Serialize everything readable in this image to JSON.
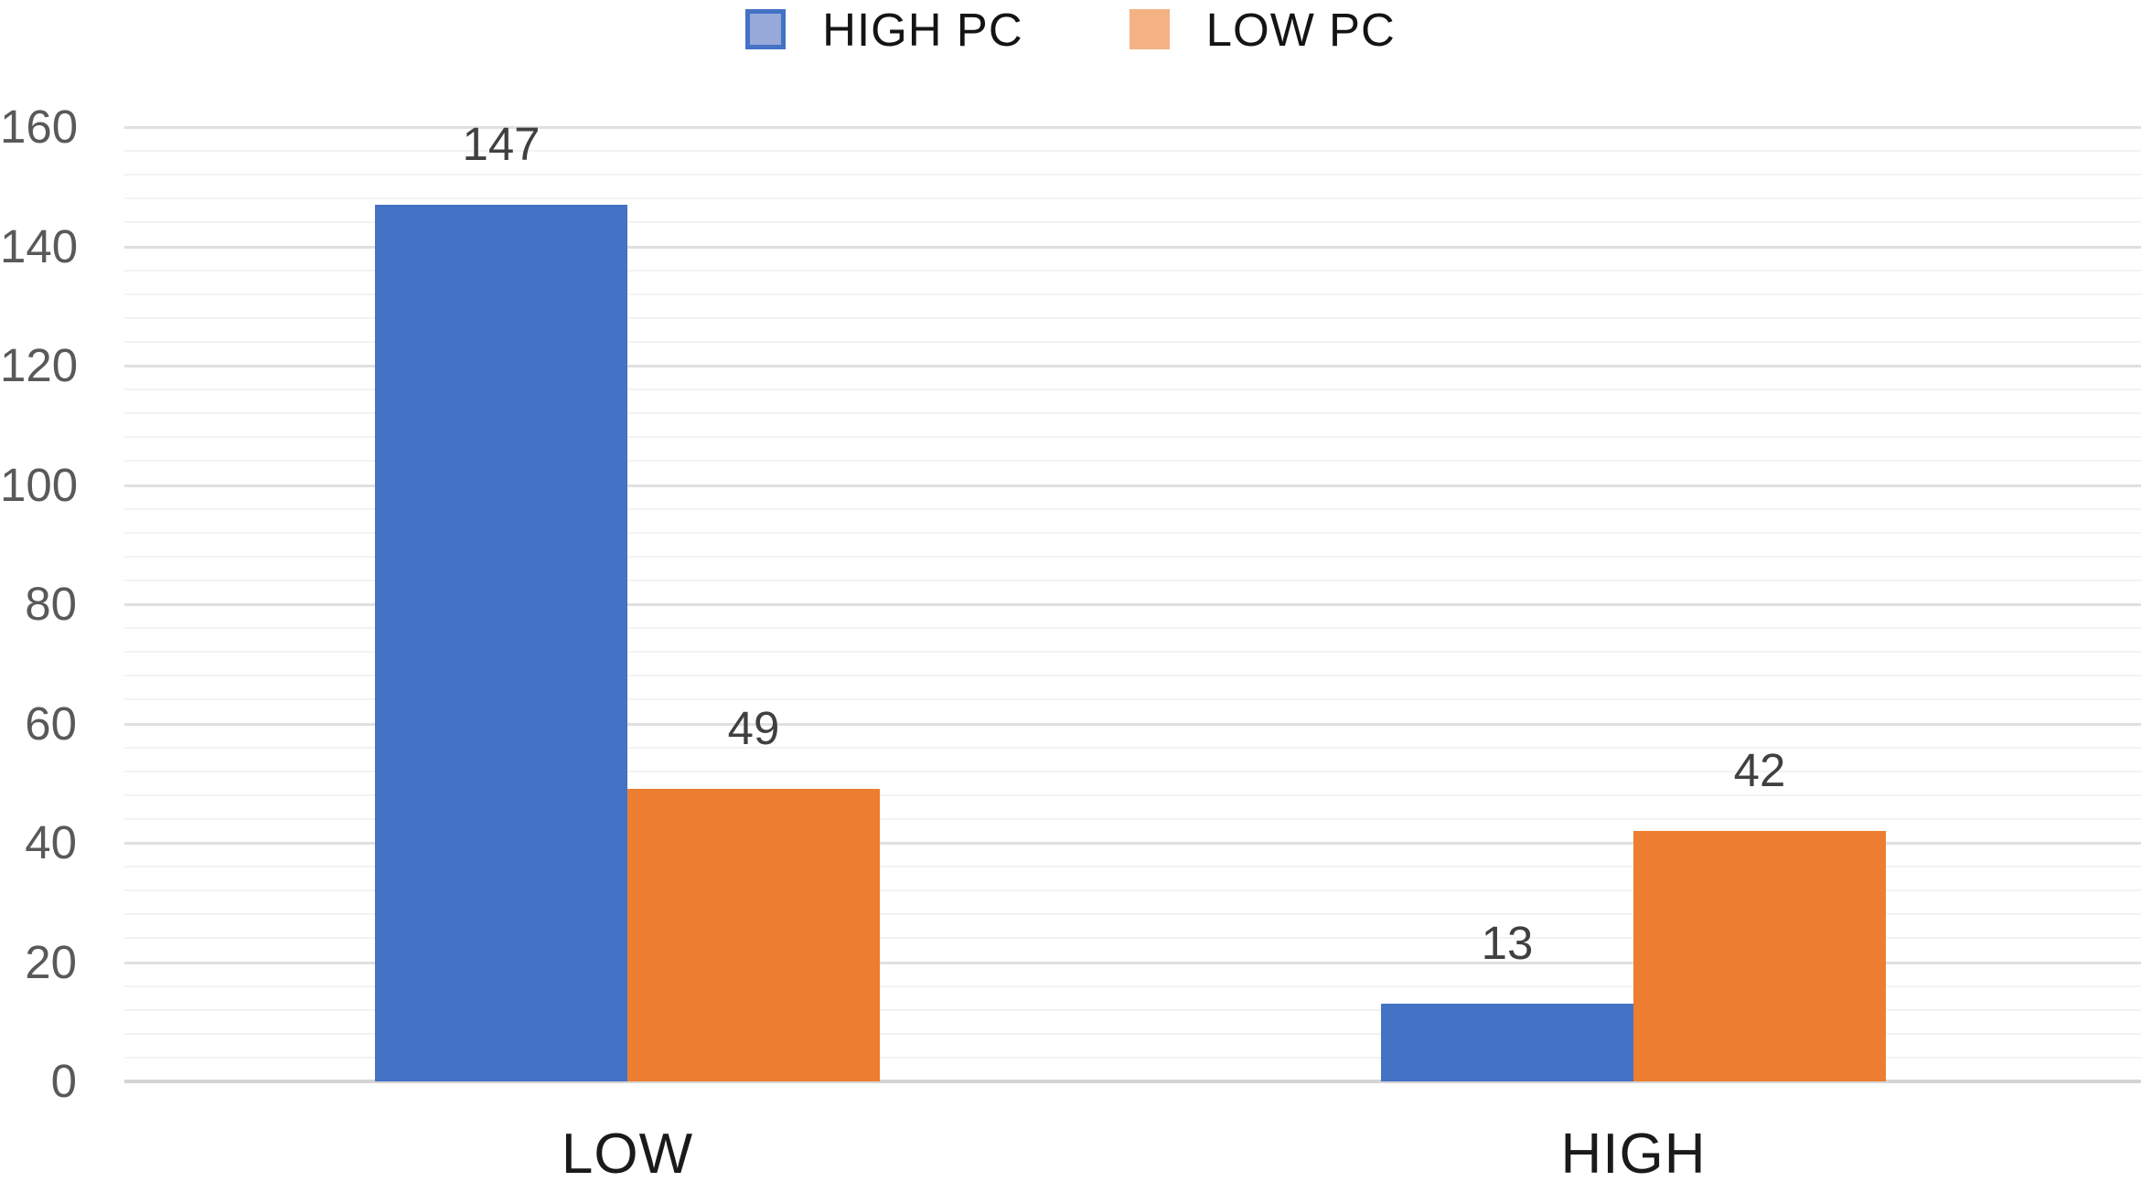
{
  "chart_data": {
    "type": "bar",
    "title": "",
    "xlabel": "",
    "ylabel": "",
    "categories": [
      "LOW",
      "HIGH"
    ],
    "series": [
      {
        "name": "HIGH PC",
        "color": "#4472C4",
        "legend_fill": "#96A9D8",
        "legend_border": "#4472C4",
        "values": [
          147,
          13
        ]
      },
      {
        "name": "LOW PC",
        "color": "#ED7D31",
        "legend_fill": "#F4B183",
        "legend_border": "#F4B183",
        "values": [
          49,
          42
        ]
      }
    ],
    "value_labels": [
      [
        "147",
        "13"
      ],
      [
        "49",
        "42"
      ]
    ],
    "ylim": [
      0,
      160
    ],
    "y_major_tick": 20,
    "y_minor_tick": 4,
    "y_tick_labels": [
      "0",
      "20",
      "40",
      "60",
      "80",
      "100",
      "120",
      "140",
      "160"
    ],
    "grid": "on",
    "legend_position": "top"
  },
  "colors": {
    "background": "#ffffff",
    "minor_gridline": "#f3f3f3",
    "major_gridline": "#e0e0e0",
    "baseline": "#d4d4d4",
    "y_tick_text": "#595959",
    "value_label_text": "#404040",
    "category_label_text": "#1a1a1a",
    "legend_text": "#141414"
  }
}
